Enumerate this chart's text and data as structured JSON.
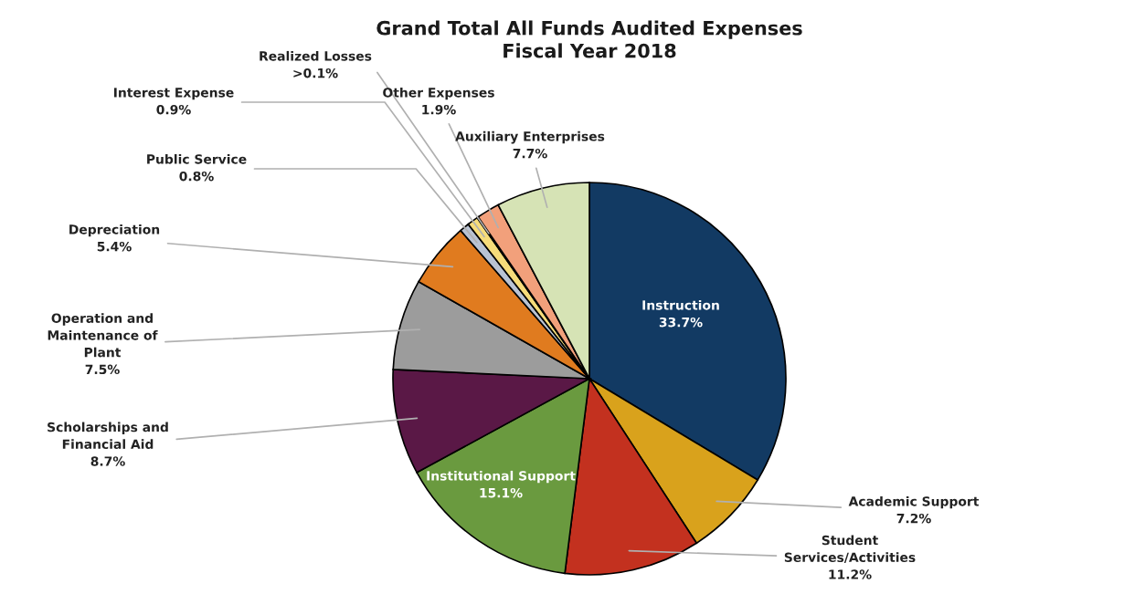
{
  "chart_data": {
    "type": "pie",
    "title": "Grand Total All Funds Audited Expenses\nFiscal Year 2018",
    "categories": [
      "Instruction",
      "Academic Support",
      "Student\nServices/Activities",
      "Institutional Support",
      "Scholarships and\nFinancial Aid",
      "Operation and\nMaintenance of\nPlant",
      "Depreciation",
      "Public Service",
      "Interest Expense",
      "Realized Losses",
      "Other Expenses",
      "Auxiliary Enterprises"
    ],
    "values": [
      33.7,
      7.2,
      11.2,
      15.1,
      8.7,
      7.5,
      5.4,
      0.8,
      0.9,
      0.1,
      1.9,
      7.7
    ],
    "value_labels": [
      "33.7%",
      "7.2%",
      "11.2%",
      "15.1%",
      "8.7%",
      "7.5%",
      "5.4%",
      "0.8%",
      "0.9%",
      ">0.1%",
      "1.9%",
      "7.7%"
    ],
    "colors": [
      "#123a63",
      "#d9a21c",
      "#c3311f",
      "#6a9a3f",
      "#5a1846",
      "#9c9c9c",
      "#e07b1f",
      "#b9c3d3",
      "#f6dc7a",
      "#7a6a4a",
      "#f2a07b",
      "#d6e3b5"
    ]
  }
}
